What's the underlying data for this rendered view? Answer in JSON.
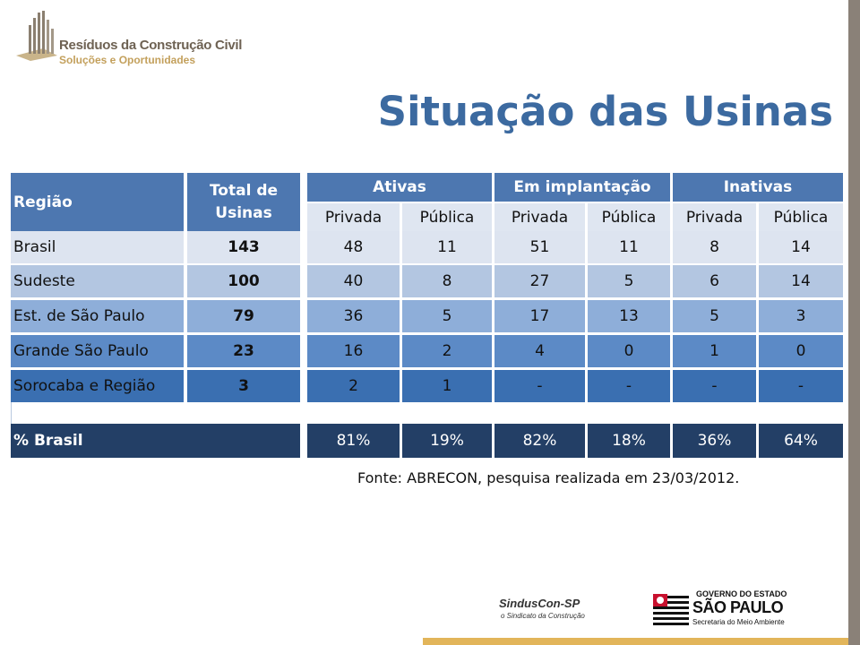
{
  "logo": {
    "title": "Resíduos da Construção Civil",
    "subtitle": "Soluções e Oportunidades"
  },
  "page": {
    "title": "Situação das Usinas"
  },
  "table": {
    "col_region": "Região",
    "col_total": "Total de Usinas",
    "groups": [
      "Ativas",
      "Em implantação",
      "Inativas"
    ],
    "subheaders": [
      "Privada",
      "Pública",
      "Privada",
      "Pública",
      "Privada",
      "Pública"
    ],
    "rows": [
      {
        "region": "Brasil",
        "total": "143",
        "values": [
          "48",
          "11",
          "51",
          "11",
          "8",
          "14"
        ]
      },
      {
        "region": "Sudeste",
        "total": "100",
        "values": [
          "40",
          "8",
          "27",
          "5",
          "6",
          "14"
        ]
      },
      {
        "region": "Est. de São Paulo",
        "total": "79",
        "values": [
          "36",
          "5",
          "17",
          "13",
          "5",
          "3"
        ]
      },
      {
        "region": "Grande São Paulo",
        "total": "23",
        "values": [
          "16",
          "2",
          "4",
          "0",
          "1",
          "0"
        ]
      },
      {
        "region": "Sorocaba e Região",
        "total": "3",
        "values": [
          "2",
          "1",
          "-",
          "-",
          "-",
          "-"
        ]
      }
    ],
    "pct_row": {
      "label": "% Brasil",
      "values": [
        "81%",
        "19%",
        "82%",
        "18%",
        "36%",
        "64%"
      ]
    }
  },
  "source": "Fonte: ABRECON, pesquisa realizada em 23/03/2012.",
  "footer_logos": {
    "sindus_name": "SindusCon-SP",
    "sindus_tag": "o Sindicato da Construção",
    "gov_line1": "GOVERNO DO ESTADO",
    "gov_line2": "SÃO PAULO",
    "gov_line3": "Secretaria do Meio Ambiente"
  },
  "colors": {
    "title": "#3c6aa0",
    "header": "#4d77b0",
    "pct_row": "#233f66",
    "right_bar": "#8a8178",
    "bottom_bar": "#e2b55a"
  }
}
